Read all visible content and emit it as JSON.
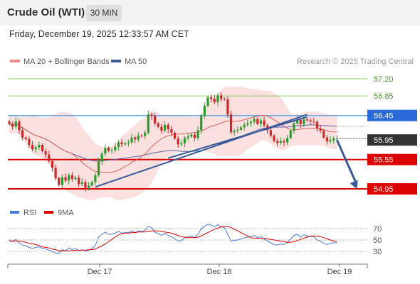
{
  "header": {
    "title": "Crude Oil (WTI)",
    "timeframe": "30 MIN"
  },
  "timestamp": "Friday, December 19, 2025 12:33:57 AM CET",
  "legend": {
    "ma20": "MA 20 + Bollinger Bands",
    "ma50": "MA 50",
    "credit": "Research © 2025 Trading Central"
  },
  "rsi_legend": {
    "rsi": "RSI",
    "ma9": "9MA"
  },
  "colors": {
    "bull": "#2e9a2e",
    "bear": "#cc2a2a",
    "ma20": "#e06060",
    "ma50": "#5566a8",
    "band_fill": "#fbe0e0",
    "resistance": "#6aa8e8",
    "support": "#dd0000",
    "target_line": "#8fcc66",
    "trend": "#3a5a99",
    "current_price_tag": "#333333"
  },
  "chart_data": {
    "type": "candlestick",
    "ylim": [
      54.82,
      57.36
    ],
    "x_ticks": [
      "Dec 17",
      "Dec 18",
      "Dec 19"
    ],
    "y_tick_labels": [
      {
        "price": 57.2,
        "label": "57.20",
        "kind": "target"
      },
      {
        "price": 56.85,
        "label": "56.85",
        "kind": "target"
      },
      {
        "price": 56.45,
        "label": "56.45",
        "kind": "resistance"
      },
      {
        "price": 55.95,
        "label": "55.95",
        "kind": "current"
      },
      {
        "price": 55.55,
        "label": "55.55",
        "kind": "support"
      },
      {
        "price": 54.95,
        "label": "54.95",
        "kind": "support"
      }
    ],
    "horizontal_levels": [
      {
        "price": 57.2,
        "kind": "target"
      },
      {
        "price": 56.85,
        "kind": "target"
      },
      {
        "price": 56.45,
        "kind": "resistance"
      },
      {
        "price": 55.55,
        "kind": "support"
      },
      {
        "price": 54.95,
        "kind": "support"
      }
    ],
    "close": [
      56.28,
      56.22,
      56.33,
      56.15,
      56.0,
      55.97,
      55.85,
      55.76,
      55.8,
      55.85,
      55.72,
      55.65,
      55.52,
      55.38,
      55.17,
      55.03,
      55.19,
      55.12,
      55.23,
      55.15,
      55.18,
      55.05,
      55.09,
      54.97,
      55.02,
      55.09,
      55.23,
      55.51,
      55.67,
      55.79,
      55.73,
      55.74,
      55.81,
      55.9,
      55.86,
      55.88,
      55.9,
      56.0,
      55.96,
      56.04,
      56.03,
      56.1,
      56.47,
      56.44,
      56.29,
      56.22,
      56.14,
      56.26,
      56.17,
      56.1,
      55.98,
      55.86,
      55.88,
      55.99,
      56.02,
      56.06,
      55.99,
      56.15,
      56.44,
      56.65,
      56.82,
      56.79,
      56.72,
      56.86,
      56.79,
      56.78,
      56.47,
      56.11,
      56.14,
      56.16,
      56.21,
      56.26,
      56.29,
      56.32,
      56.38,
      56.28,
      56.35,
      56.25,
      56.15,
      56.04,
      55.93,
      55.89,
      55.93,
      55.9,
      55.99,
      56.14,
      56.29,
      56.36,
      56.27,
      56.37,
      56.35,
      56.33,
      56.32,
      56.19,
      56.14,
      56.0,
      55.92,
      55.95,
      55.98,
      55.98
    ],
    "trendlines": [
      {
        "from": {
          "bar": 26,
          "price": 54.99
        },
        "to": {
          "bar": 90,
          "price": 56.47
        }
      },
      {
        "from": {
          "bar": 48,
          "price": 55.58
        },
        "to": {
          "bar": 90,
          "price": 56.42
        }
      }
    ],
    "projection": {
      "from": {
        "bar": 99,
        "price": 55.95
      },
      "to": {
        "bar": 105,
        "price": 54.95
      }
    },
    "rsi": {
      "ylim": [
        20,
        80
      ],
      "levels": [
        70,
        50,
        30
      ],
      "rsi": [
        49,
        47,
        51,
        45,
        41,
        40,
        37,
        35,
        37,
        38,
        35,
        34,
        32,
        30,
        27,
        26,
        33,
        31,
        36,
        33,
        35,
        31,
        33,
        30,
        32,
        35,
        40,
        55,
        60,
        64,
        60,
        60,
        62,
        65,
        62,
        63,
        63,
        66,
        63,
        66,
        65,
        67,
        74,
        72,
        64,
        61,
        58,
        62,
        58,
        56,
        52,
        48,
        49,
        54,
        55,
        57,
        54,
        60,
        70,
        74,
        78,
        76,
        73,
        77,
        73,
        72,
        60,
        48,
        49,
        50,
        52,
        54,
        55,
        56,
        58,
        54,
        56,
        52,
        48,
        45,
        42,
        41,
        43,
        42,
        46,
        52,
        58,
        60,
        55,
        59,
        57,
        56,
        56,
        50,
        48,
        44,
        42,
        44,
        45,
        45
      ],
      "ma9": [
        49,
        48,
        48,
        48,
        47,
        46,
        44,
        43,
        42,
        40,
        38,
        37,
        36,
        34,
        33,
        31,
        31,
        31,
        31,
        31,
        32,
        32,
        32,
        32,
        33,
        33,
        34,
        37,
        40,
        43,
        47,
        51,
        55,
        59,
        61,
        62,
        62,
        63,
        63,
        64,
        64,
        64,
        65,
        66,
        66,
        66,
        65,
        64,
        63,
        62,
        60,
        58,
        56,
        55,
        54,
        54,
        54,
        55,
        57,
        60,
        63,
        66,
        69,
        71,
        73,
        74,
        74,
        72,
        69,
        66,
        63,
        60,
        57,
        54,
        53,
        53,
        53,
        53,
        52,
        51,
        50,
        49,
        48,
        47,
        46,
        46,
        47,
        49,
        51,
        53,
        55,
        57,
        57,
        57,
        56,
        54,
        52,
        50,
        48,
        47
      ]
    }
  }
}
